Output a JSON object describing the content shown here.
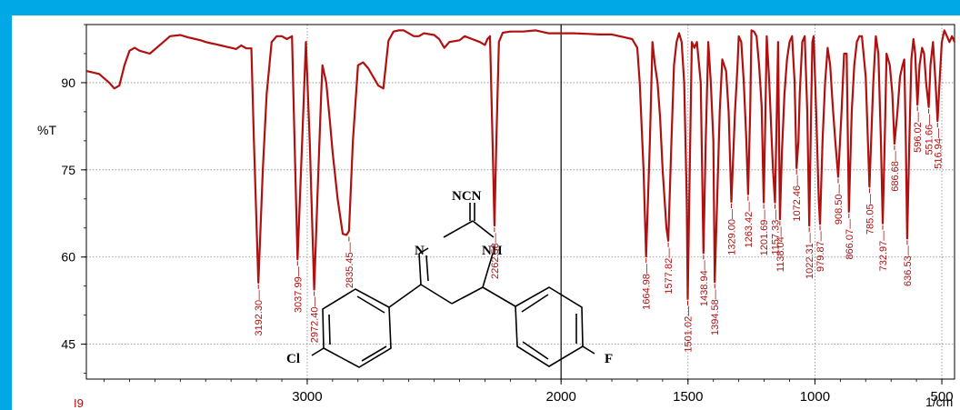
{
  "chart_data": {
    "type": "line",
    "title": "",
    "xlabel": "1/cm",
    "ylabel": "%T",
    "corner_label": "I9",
    "xlim": [
      3870,
      450
    ],
    "ylim": [
      39,
      100
    ],
    "x_ticks": [
      "3000",
      "2000",
      "1500",
      "1000",
      "500"
    ],
    "y_ticks": [
      "90",
      "75",
      "60",
      "45"
    ],
    "grid": true,
    "grid_style": "dotted",
    "line_color": "#b01010",
    "series": [
      {
        "name": "",
        "x": [
          3870,
          3820,
          3780,
          3760,
          3740,
          3720,
          3700,
          3680,
          3660,
          3620,
          3580,
          3540,
          3500,
          3470,
          3440,
          3420,
          3400,
          3380,
          3360,
          3340,
          3320,
          3300,
          3280,
          3260,
          3240,
          3220,
          3210,
          3192.3,
          3175,
          3160,
          3140,
          3120,
          3100,
          3080,
          3060,
          3050,
          3037.99,
          3020,
          3005,
          2990,
          2972.4,
          2960,
          2945,
          2940,
          2925,
          2910,
          2900,
          2880,
          2860,
          2845,
          2835.45,
          2820,
          2800,
          2780,
          2760,
          2740,
          2720,
          2700,
          2680,
          2660,
          2640,
          2620,
          2600,
          2580,
          2560,
          2540,
          2500,
          2480,
          2460,
          2440,
          2400,
          2380,
          2350,
          2320,
          2300,
          2290,
          2280,
          2270,
          2262.58,
          2255,
          2245,
          2230,
          2200,
          2150,
          2100,
          2050,
          2000,
          1950,
          1900,
          1850,
          1800,
          1750,
          1720,
          1700,
          1690,
          1675,
          1664.98,
          1650,
          1640,
          1630,
          1620,
          1610,
          1600,
          1585,
          1577.82,
          1565,
          1555,
          1545,
          1535,
          1525,
          1515,
          1505,
          1501.02,
          1495,
          1485,
          1475,
          1465,
          1450,
          1438.94,
          1430,
          1420,
          1410,
          1400,
          1394.58,
          1385,
          1375,
          1365,
          1350,
          1340,
          1329,
          1315,
          1305,
          1300,
          1290,
          1280,
          1270,
          1263.42,
          1255,
          1250,
          1240,
          1230,
          1220,
          1210,
          1201.69,
          1195,
          1190,
          1180,
          1170,
          1165,
          1157.33,
          1150,
          1145,
          1138.04,
          1130,
          1120,
          1110,
          1100,
          1090,
          1080,
          1072.46,
          1065,
          1060,
          1050,
          1040,
          1030,
          1022.31,
          1015,
          1010,
          1005,
          995,
          985,
          979.87,
          970,
          960,
          950,
          940,
          930,
          920,
          908.5,
          895,
          885,
          875,
          866.07,
          855,
          845,
          835,
          825,
          815,
          800,
          785.05,
          770,
          760,
          750,
          740,
          732.97,
          725,
          718,
          705,
          695,
          686.68,
          675,
          665,
          655,
          648,
          642,
          636.53,
          628,
          620,
          612,
          605,
          596.02,
          588,
          578,
          570,
          562,
          551.66,
          545,
          535,
          525,
          516.94,
          508,
          500,
          490,
          480,
          470,
          460,
          450
        ],
        "y": [
          92,
          91.5,
          90,
          89,
          89.5,
          93,
          95.5,
          96,
          95.5,
          95,
          96.5,
          98,
          98.2,
          97.8,
          97.5,
          97.3,
          97,
          96.8,
          96.6,
          96.4,
          96.2,
          96,
          95.8,
          96.4,
          95.9,
          95.9,
          80,
          55.6,
          75,
          88,
          97,
          98,
          98,
          97.5,
          98,
          80,
          59.6,
          80,
          97,
          80,
          54.4,
          70,
          88,
          93,
          90,
          83,
          78,
          70,
          64,
          63.8,
          64.5,
          80,
          93,
          93.5,
          92.5,
          91,
          89.5,
          89,
          97.2,
          98.8,
          99,
          99,
          98.5,
          98,
          98,
          98.5,
          98.2,
          97.5,
          96,
          97,
          97.3,
          98,
          97.5,
          97,
          96.5,
          97.5,
          98,
          80,
          65.4,
          80,
          97,
          98.6,
          98.8,
          98.8,
          99,
          98.5,
          98.5,
          98.5,
          98.4,
          98.3,
          98.3,
          97.8,
          97.5,
          96,
          90,
          75,
          60.1,
          80,
          97,
          93,
          90,
          84,
          75,
          65,
          62.8,
          80,
          93,
          97,
          98.5,
          97,
          90,
          70,
          52.8,
          70,
          97,
          96,
          97,
          90,
          60.7,
          80,
          97,
          90,
          80,
          55.7,
          70,
          85,
          94,
          92,
          85,
          69.5,
          85,
          93,
          98,
          97,
          90,
          80,
          70.8,
          85,
          99,
          98.8,
          98,
          93,
          86,
          69.4,
          85,
          98,
          90,
          80,
          75,
          69.4,
          85,
          97,
          66.5,
          78,
          88,
          94,
          97,
          98,
          90,
          75.3,
          80,
          88,
          97,
          98,
          85,
          65.4,
          85,
          97,
          98,
          85,
          70,
          65.7,
          80,
          90,
          96,
          93,
          86,
          80,
          73.8,
          85,
          95,
          95,
          67.8,
          85,
          93,
          97,
          98,
          98,
          91,
          72.1,
          90,
          98,
          95,
          80,
          65.8,
          80,
          95,
          93,
          88,
          79.5,
          85,
          91,
          93,
          94,
          80,
          63.2,
          80,
          94,
          97.5,
          95,
          86.2,
          93,
          96,
          95,
          90,
          85.8,
          93,
          97,
          90,
          83.4,
          91,
          97,
          99,
          98,
          97,
          98,
          97
        ]
      }
    ],
    "peak_labels": [
      {
        "x": 3192.3,
        "y": 55.6,
        "label": "3192.30"
      },
      {
        "x": 3037.99,
        "y": 59.6,
        "label": "3037.99"
      },
      {
        "x": 2972.4,
        "y": 54.4,
        "label": "2972.40"
      },
      {
        "x": 2835.45,
        "y": 63.8,
        "label": "2835.45"
      },
      {
        "x": 2262.58,
        "y": 65.4,
        "label": "2262.58"
      },
      {
        "x": 1664.98,
        "y": 60.1,
        "label": "1664.98"
      },
      {
        "x": 1577.82,
        "y": 62.8,
        "label": "1577.82"
      },
      {
        "x": 1501.02,
        "y": 52.8,
        "label": "1501.02"
      },
      {
        "x": 1438.94,
        "y": 60.7,
        "label": "1438.94"
      },
      {
        "x": 1394.58,
        "y": 55.7,
        "label": "1394.58"
      },
      {
        "x": 1329.0,
        "y": 69.5,
        "label": "1329.00"
      },
      {
        "x": 1263.42,
        "y": 70.8,
        "label": "1263.42"
      },
      {
        "x": 1201.69,
        "y": 69.4,
        "label": "1201.69"
      },
      {
        "x": 1157.33,
        "y": 69.4,
        "label": "1157.33"
      },
      {
        "x": 1138.04,
        "y": 66.5,
        "label": "1138.04"
      },
      {
        "x": 1072.46,
        "y": 75.3,
        "label": "1072.46"
      },
      {
        "x": 1022.31,
        "y": 65.4,
        "label": "1022.31"
      },
      {
        "x": 979.87,
        "y": 65.7,
        "label": "979.87"
      },
      {
        "x": 908.5,
        "y": 73.8,
        "label": "908.50"
      },
      {
        "x": 866.07,
        "y": 67.8,
        "label": "866.07"
      },
      {
        "x": 785.05,
        "y": 72.1,
        "label": "785.05"
      },
      {
        "x": 732.97,
        "y": 65.8,
        "label": "732.97"
      },
      {
        "x": 686.68,
        "y": 79.5,
        "label": "686.68"
      },
      {
        "x": 636.53,
        "y": 63.2,
        "label": "636.53"
      },
      {
        "x": 596.02,
        "y": 86.2,
        "label": "596.02"
      },
      {
        "x": 551.66,
        "y": 85.8,
        "label": "551.66"
      },
      {
        "x": 516.94,
        "y": 83.4,
        "label": "516.94"
      }
    ]
  },
  "molecule": {
    "atoms": [
      "NCN",
      "N",
      "NH",
      "Cl",
      "F"
    ]
  }
}
